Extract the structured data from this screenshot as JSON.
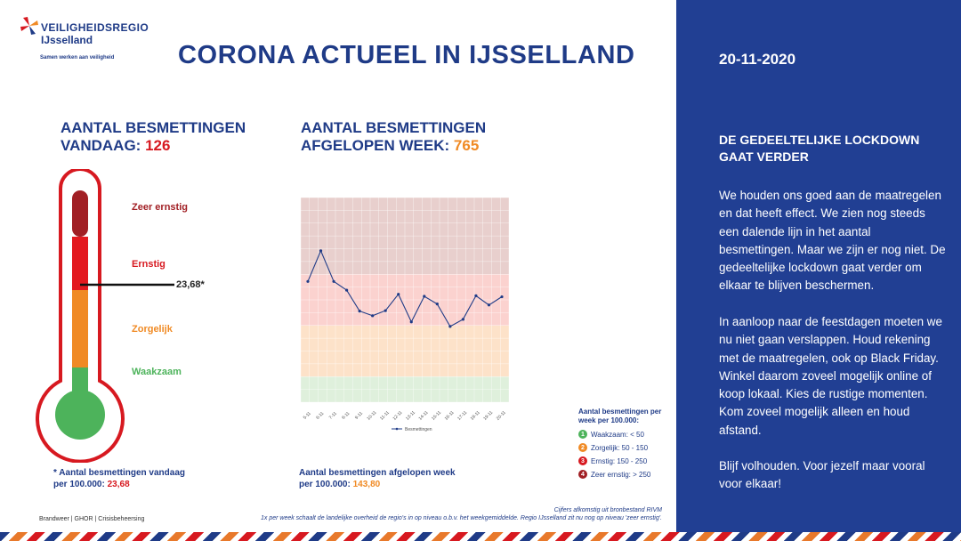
{
  "header": {
    "org_name": "VEILIGHEIDSREGIO",
    "org_region": "IJsselland",
    "org_tagline": "Samen werken aan veiligheid",
    "title": "CORONA ACTUEEL IN IJSSELLAND"
  },
  "kpi_today": {
    "line1": "AANTAL BESMETTINGEN",
    "line2": "VANDAAG: ",
    "value": "126"
  },
  "kpi_week": {
    "line1": "AANTAL BESMETTINGEN",
    "line2": "AFGELOPEN WEEK: ",
    "value": "765"
  },
  "thermometer": {
    "labels": {
      "zeer_ernstig": "Zeer ernstig",
      "ernstig": "Ernstig",
      "zorgelijk": "Zorgelijk",
      "waakzaam": "Waakzaam"
    },
    "marker_value": "23,68*",
    "colors": {
      "zeer_ernstig": "#a11f24",
      "ernstig": "#d71920",
      "zorgelijk": "#f08a24",
      "waakzaam": "#4db35b"
    }
  },
  "notes": {
    "today_line1": "* Aantal besmettingen vandaag",
    "today_line2": "per 100.000: ",
    "today_value": "23,68",
    "week_line1": "Aantal besmettingen afgelopen week",
    "week_line2": "per 100.000: ",
    "week_value": "143,80"
  },
  "chart_data": {
    "type": "line",
    "x": [
      "5-11",
      "6-11",
      "7-11",
      "8-11",
      "9-11",
      "10-11",
      "11-11",
      "12-11",
      "13-11",
      "14-11",
      "15-11",
      "16-11",
      "17-11",
      "18-11",
      "19-11",
      "20-11"
    ],
    "series": [
      {
        "name": "Besmettingen",
        "values": [
          236,
          296,
          236,
          219,
          178,
          169,
          179,
          211,
          157,
          207,
          192,
          148,
          162,
          208,
          190,
          206
        ],
        "color": "#1f3b87"
      }
    ],
    "ylim": [
      0,
      400
    ],
    "bands": [
      {
        "from": 0,
        "to": 50,
        "color": "#dff0dc"
      },
      {
        "from": 50,
        "to": 150,
        "color": "#fde2c9"
      },
      {
        "from": 150,
        "to": 250,
        "color": "#fbd2cf"
      },
      {
        "from": 250,
        "to": 400,
        "color": "#e8cfcd"
      }
    ],
    "grid": true,
    "legend_position": "bottom"
  },
  "legend": {
    "title": "Aantal besmettingen per week per 100.000:",
    "items": [
      {
        "num": "1",
        "text": "Waakzaam: < 50",
        "color": "#4db35b"
      },
      {
        "num": "2",
        "text": "Zorgelijk: 50 - 150",
        "color": "#f08a24"
      },
      {
        "num": "3",
        "text": "Ernstig: 150 - 250",
        "color": "#d71920"
      },
      {
        "num": "4",
        "text": "Zeer ernstig: > 250",
        "color": "#a11f24"
      }
    ]
  },
  "footer": {
    "left": "Brandweer | GHOR | Crisisbeheersing",
    "source": "Cijfers afkomstig uit bronbestand RIVM",
    "note": "1x per week schaalt de landelijke overheid de regio's in op niveau o.b.v. het weekgemiddelde. Regio IJsselland zit nu nog op niveau 'zeer ernstig'."
  },
  "side": {
    "date": "20-11-2020",
    "heading": "DE GEDEELTELIJKE LOCKDOWN GAAT VERDER",
    "p1": "We houden ons goed aan de maatregelen en dat heeft effect. We zien nog steeds een dalende lijn in het aantal besmettingen. Maar we zijn er nog niet. De gedeeltelijke lockdown gaat verder om elkaar te blijven beschermen.",
    "p2": "In aanloop naar de feestdagen moeten we nu niet gaan verslappen. Houd rekening met de maatregelen, ook op Black Friday. Winkel daarom zoveel mogelijk online of koop lokaal. Kies de rustige momenten. Kom zoveel mogelijk alleen en houd afstand.",
    "p3": "Blijf volhouden. Voor jezelf maar vooral voor elkaar!"
  }
}
